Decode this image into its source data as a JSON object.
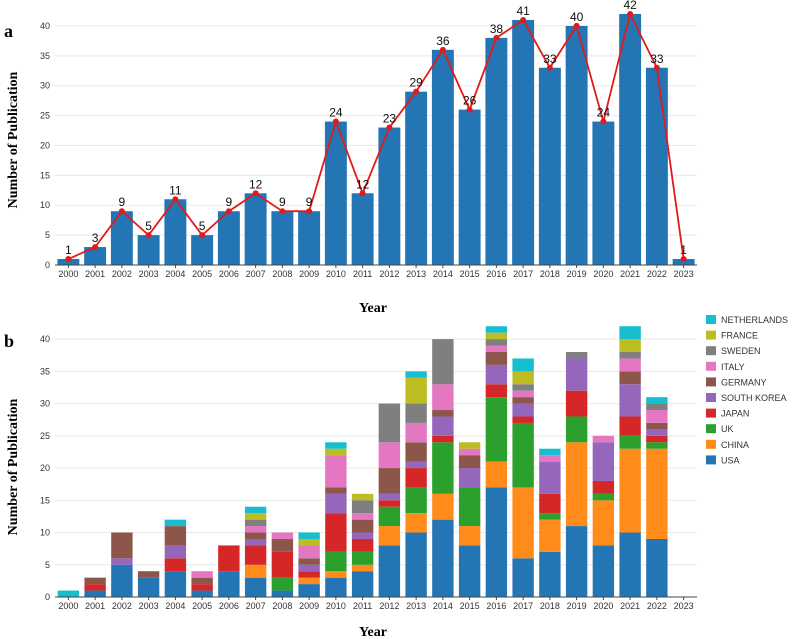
{
  "chart_data": [
    {
      "panel": "a",
      "type": "bar",
      "categories": [
        "2000",
        "2001",
        "2002",
        "2003",
        "2004",
        "2005",
        "2006",
        "2007",
        "2008",
        "2009",
        "2010",
        "2011",
        "2012",
        "2013",
        "2014",
        "2015",
        "2016",
        "2017",
        "2018",
        "2019",
        "2020",
        "2021",
        "2022",
        "2023"
      ],
      "values": [
        1,
        3,
        9,
        5,
        11,
        5,
        9,
        12,
        9,
        9,
        24,
        12,
        23,
        29,
        36,
        26,
        38,
        41,
        33,
        40,
        24,
        42,
        33,
        1
      ],
      "data_labels": [
        "1",
        "3",
        "9",
        "5",
        "11",
        "5",
        "9",
        "12",
        "9",
        "9",
        "24",
        "12",
        "23",
        "29",
        "36",
        "26",
        "38",
        "41",
        "33",
        "40",
        "24",
        "42",
        "33",
        "1"
      ],
      "overlay_line": true,
      "xlabel": "Year",
      "ylabel": "Number of Publication",
      "ylim": [
        0,
        43
      ],
      "yticks": [
        "0",
        "5",
        "10",
        "15",
        "20",
        "25",
        "30",
        "35",
        "40"
      ],
      "bar_color": "#2475b4",
      "line_color": "#e31a1c"
    },
    {
      "panel": "b",
      "type": "bar",
      "stacked": true,
      "categories": [
        "2000",
        "2001",
        "2002",
        "2003",
        "2004",
        "2005",
        "2006",
        "2007",
        "2008",
        "2009",
        "2010",
        "2011",
        "2012",
        "2013",
        "2014",
        "2015",
        "2016",
        "2017",
        "2018",
        "2019",
        "2020",
        "2021",
        "2022",
        "2023"
      ],
      "series": [
        {
          "name": "USA",
          "color": "#2475b4",
          "values": [
            0,
            1,
            5,
            3,
            4,
            1,
            4,
            3,
            1,
            2,
            3,
            4,
            8,
            10,
            12,
            8,
            17,
            6,
            7,
            11,
            8,
            10,
            9,
            0
          ]
        },
        {
          "name": "CHINA",
          "color": "#ff8c1a",
          "values": [
            0,
            0,
            0,
            0,
            0,
            0,
            0,
            2,
            0,
            1,
            1,
            1,
            3,
            3,
            4,
            3,
            4,
            11,
            5,
            13,
            7,
            13,
            14,
            0
          ]
        },
        {
          "name": "UK",
          "color": "#2ca02c",
          "values": [
            0,
            0,
            0,
            0,
            0,
            0,
            0,
            0,
            2,
            0,
            3,
            2,
            3,
            4,
            8,
            6,
            10,
            10,
            1,
            4,
            1,
            2,
            1,
            0
          ]
        },
        {
          "name": "JAPAN",
          "color": "#d62728",
          "values": [
            0,
            1,
            0,
            0,
            2,
            1,
            4,
            3,
            4,
            1,
            6,
            2,
            1,
            3,
            1,
            0,
            2,
            1,
            3,
            4,
            2,
            3,
            1,
            0
          ]
        },
        {
          "name": "SOUTH KOREA",
          "color": "#9467bd",
          "values": [
            0,
            0,
            1,
            0,
            2,
            0,
            0,
            1,
            0,
            1,
            3,
            1,
            1,
            1,
            3,
            3,
            3,
            2,
            5,
            5,
            6,
            5,
            1,
            0
          ]
        },
        {
          "name": "GERMANY",
          "color": "#8c564b",
          "values": [
            0,
            1,
            4,
            1,
            3,
            1,
            0,
            1,
            2,
            1,
            1,
            2,
            4,
            3,
            1,
            2,
            2,
            1,
            0,
            0,
            0,
            2,
            1,
            0
          ]
        },
        {
          "name": "ITALY",
          "color": "#e377c2",
          "values": [
            0,
            0,
            0,
            0,
            0,
            1,
            0,
            1,
            1,
            2,
            5,
            1,
            4,
            3,
            4,
            1,
            1,
            1,
            1,
            0,
            1,
            2,
            2,
            0
          ]
        },
        {
          "name": "SWEDEN",
          "color": "#7f7f7f",
          "values": [
            0,
            0,
            0,
            0,
            0,
            0,
            0,
            1,
            0,
            0,
            0,
            2,
            6,
            3,
            7,
            0,
            1,
            1,
            0,
            1,
            0,
            1,
            1,
            0
          ]
        },
        {
          "name": "FRANCE",
          "color": "#bcbd22",
          "values": [
            0,
            0,
            0,
            0,
            0,
            0,
            0,
            1,
            0,
            1,
            1,
            1,
            0,
            4,
            0,
            1,
            1,
            2,
            0,
            0,
            0,
            2,
            0,
            0
          ]
        },
        {
          "name": "NETHERLANDS",
          "color": "#17becf",
          "values": [
            1,
            0,
            0,
            0,
            1,
            0,
            0,
            1,
            0,
            1,
            1,
            0,
            0,
            1,
            0,
            0,
            1,
            2,
            1,
            0,
            0,
            2,
            1,
            0
          ]
        }
      ],
      "legend_position": "right",
      "xlabel": "Year",
      "ylabel": "Number of Publication",
      "ylim": [
        0,
        42.5
      ],
      "yticks": [
        "0",
        "5",
        "10",
        "15",
        "20",
        "25",
        "30",
        "35",
        "40"
      ]
    }
  ]
}
